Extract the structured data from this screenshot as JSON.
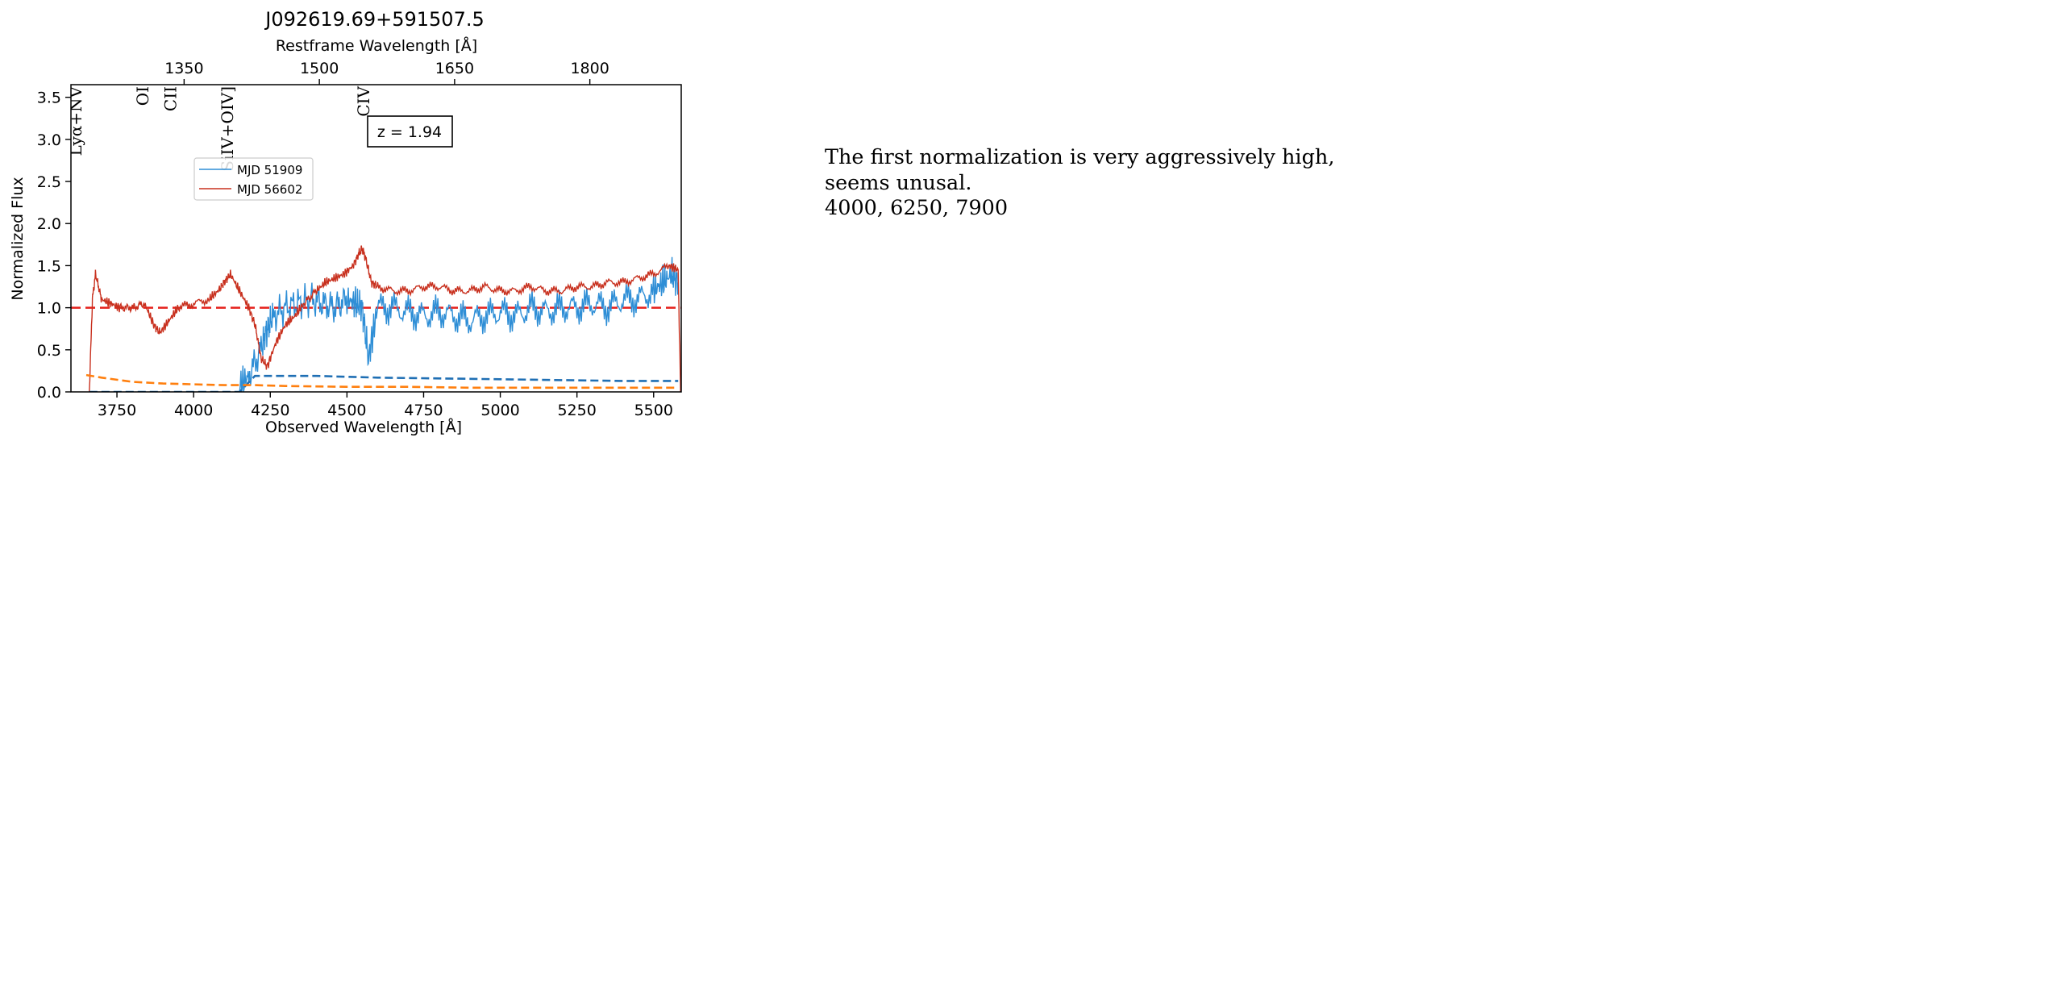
{
  "chart_data": {
    "type": "line",
    "title": "J092619.69+591507.5",
    "xlabel": "Observed Wavelength [Å]",
    "top_xlabel": "Restframe Wavelength [Å]",
    "ylabel": "Normalized Flux",
    "xlim": [
      3600,
      5590
    ],
    "ylim": [
      0,
      3.65
    ],
    "x_ticks": [
      "3750",
      "4000",
      "4250",
      "4500",
      "4750",
      "5000",
      "5250",
      "5500"
    ],
    "y_ticks": [
      "0.0",
      "0.5",
      "1.0",
      "1.5",
      "2.0",
      "2.5",
      "3.0",
      "3.5"
    ],
    "top_ticks": [
      "1350",
      "1500",
      "1650",
      "1800"
    ],
    "redshift": 1.94,
    "redshift_label": "z = 1.94",
    "grid": false,
    "legend_position": "upper-left",
    "line_labels": [
      {
        "label": "Lyα+NV",
        "rest": 1230
      },
      {
        "label": "OI",
        "rest": 1304
      },
      {
        "label": "CII",
        "rest": 1335
      },
      {
        "label": "SiIV+OIV]",
        "rest": 1398
      },
      {
        "label": "CIV",
        "rest": 1549
      }
    ],
    "reference_line": {
      "y": 1.0,
      "color": "#e5211b",
      "style": "dashed"
    },
    "series": [
      {
        "name": "MJD 51909",
        "color": "#2e8ed6",
        "x": [
          4150,
          4180,
          4220,
          4240,
          4260,
          4300,
          4340,
          4380,
          4420,
          4460,
          4500,
          4530,
          4550,
          4570,
          4600,
          4650,
          4700,
          4750,
          4800,
          4850,
          4900,
          4950,
          5000,
          5050,
          5100,
          5150,
          5200,
          5250,
          5300,
          5350,
          5400,
          5450,
          5500,
          5530,
          5560,
          5580
        ],
        "values": [
          0.05,
          0.2,
          0.5,
          0.75,
          0.9,
          1.0,
          1.05,
          1.1,
          1.05,
          1.0,
          1.1,
          1.05,
          1.0,
          0.4,
          1.0,
          1.0,
          0.95,
          0.9,
          0.95,
          0.9,
          0.85,
          0.9,
          0.95,
          0.9,
          1.0,
          0.95,
          1.0,
          1.0,
          1.05,
          1.0,
          1.1,
          1.1,
          1.2,
          1.3,
          1.4,
          1.3
        ]
      },
      {
        "name": "MJD 56602",
        "color": "#c8301e",
        "x": [
          3660,
          3670,
          3680,
          3700,
          3730,
          3760,
          3800,
          3840,
          3870,
          3890,
          3920,
          3950,
          4000,
          4050,
          4080,
          4100,
          4120,
          4150,
          4180,
          4200,
          4220,
          4240,
          4270,
          4300,
          4330,
          4360,
          4400,
          4430,
          4460,
          4490,
          4520,
          4540,
          4550,
          4560,
          4580,
          4600,
          4650,
          4700,
          4750,
          4800,
          4850,
          4900,
          4950,
          5000,
          5050,
          5100,
          5150,
          5200,
          5250,
          5300,
          5350,
          5400,
          5450,
          5500,
          5550,
          5580,
          5588
        ],
        "values": [
          0.0,
          1.1,
          1.4,
          1.1,
          1.05,
          1.0,
          1.0,
          1.05,
          0.8,
          0.7,
          0.85,
          1.0,
          1.05,
          1.1,
          1.2,
          1.3,
          1.4,
          1.2,
          1.0,
          0.8,
          0.4,
          0.3,
          0.6,
          0.8,
          0.9,
          1.05,
          1.2,
          1.3,
          1.35,
          1.4,
          1.5,
          1.65,
          1.7,
          1.6,
          1.3,
          1.25,
          1.2,
          1.2,
          1.25,
          1.25,
          1.2,
          1.2,
          1.25,
          1.2,
          1.2,
          1.25,
          1.2,
          1.2,
          1.25,
          1.25,
          1.3,
          1.3,
          1.35,
          1.4,
          1.5,
          1.45,
          0.0
        ]
      },
      {
        "name": "error-51909",
        "color": "#1f6fb4",
        "style": "dashed",
        "x": [
          3660,
          3900,
          4150,
          4200,
          4400,
          4600,
          4800,
          5000,
          5200,
          5400,
          5580
        ],
        "values": [
          0.0,
          0.0,
          0.0,
          0.19,
          0.19,
          0.17,
          0.16,
          0.15,
          0.14,
          0.13,
          0.13
        ]
      },
      {
        "name": "error-56602",
        "color": "#ff7f0e",
        "style": "dashed",
        "x": [
          3650,
          3700,
          3800,
          3900,
          4000,
          4100,
          4200,
          4300,
          4500,
          4700,
          4900,
          5100,
          5300,
          5500,
          5580
        ],
        "values": [
          0.2,
          0.17,
          0.12,
          0.1,
          0.09,
          0.08,
          0.08,
          0.07,
          0.06,
          0.06,
          0.05,
          0.05,
          0.05,
          0.05,
          0.05
        ]
      }
    ]
  },
  "note": {
    "lines": [
      "The first normalization is very aggressively high,",
      "seems unusal.",
      "4000, 6250, 7900"
    ]
  }
}
